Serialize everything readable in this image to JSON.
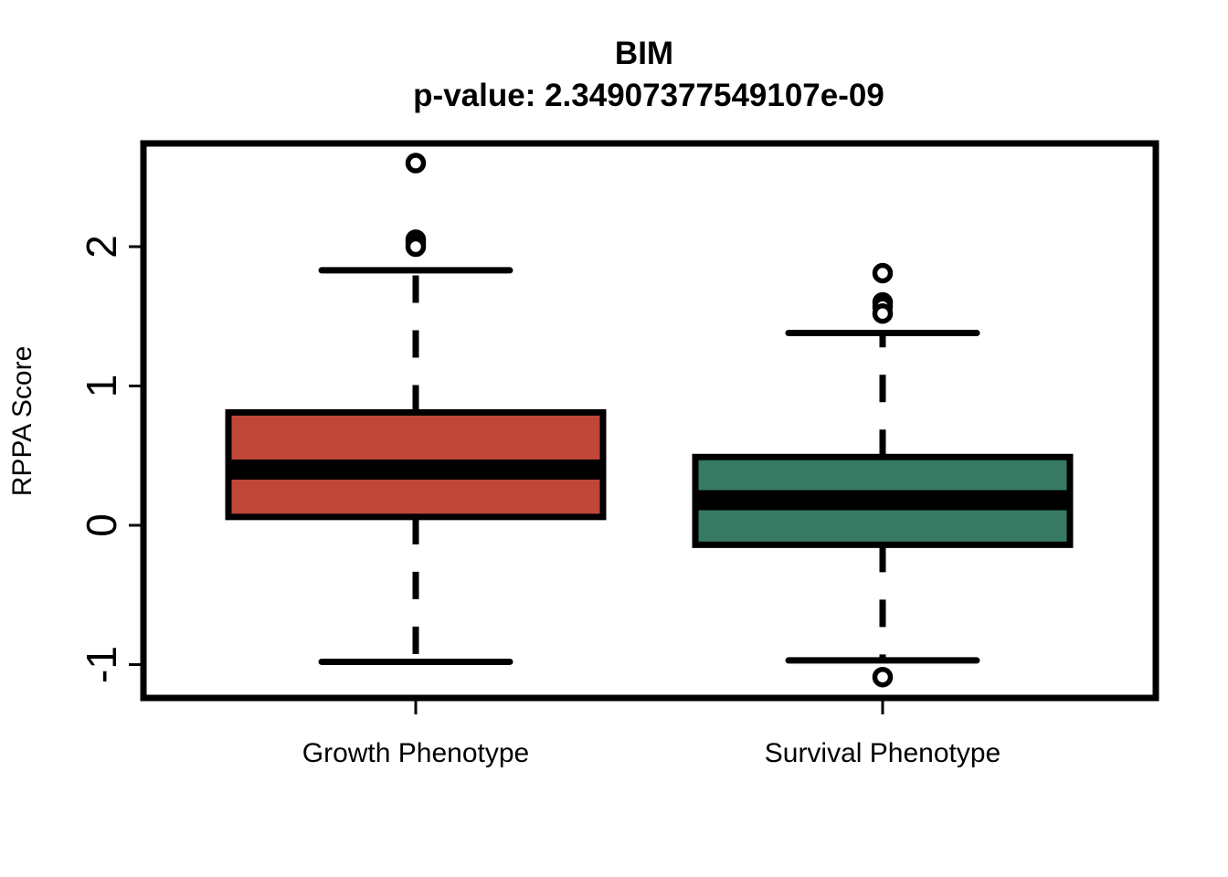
{
  "chart_data": {
    "type": "box",
    "title": "BIM",
    "subtitle": "p-value: 2.34907377549107e-09",
    "xlabel": "",
    "ylabel": "RPPA Score",
    "ylim": [
      -1.2,
      2.75
    ],
    "yticks": [
      -1,
      0,
      1,
      2
    ],
    "grid": false,
    "categories": [
      "Growth Phenotype",
      "Survival Phenotype"
    ],
    "series": [
      {
        "category": "Growth Phenotype",
        "color": "#C0463A",
        "whisker_low": -0.98,
        "q1": 0.06,
        "median": 0.4,
        "q3": 0.81,
        "whisker_high": 1.83,
        "outliers": [
          2.6,
          2.05,
          2.03,
          2.0
        ]
      },
      {
        "category": "Survival Phenotype",
        "color": "#367A63",
        "whisker_low": -0.97,
        "q1": -0.14,
        "median": 0.18,
        "q3": 0.49,
        "whisker_high": 1.38,
        "outliers": [
          1.81,
          1.6,
          1.57,
          1.52,
          -1.09
        ]
      }
    ]
  }
}
